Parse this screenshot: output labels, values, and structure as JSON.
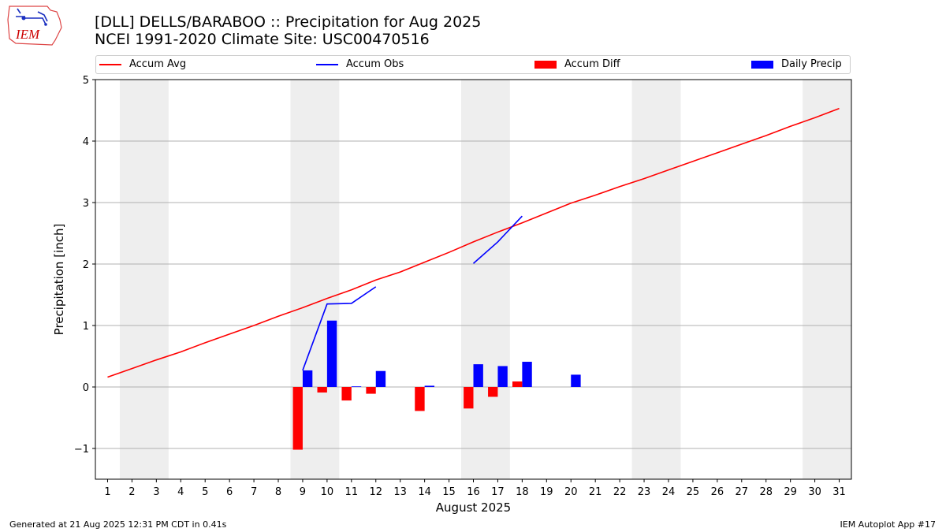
{
  "logo": {
    "text": "IEM",
    "icon": "iem-iowa-logo-icon",
    "color": "#cc0000"
  },
  "title_line1": "[DLL] DELLS/BARABOO :: Precipitation for Aug 2025",
  "title_line2": "NCEI 1991-2020 Climate Site: USC00470516",
  "footer_left": "Generated at 21 Aug 2025 12:31 PM CDT in 0.41s",
  "footer_right": "IEM Autoplot App #17",
  "legend": [
    {
      "label": "Accum Avg",
      "kind": "line",
      "color": "#ff0000"
    },
    {
      "label": "Accum Obs",
      "kind": "line",
      "color": "#0000ff"
    },
    {
      "label": "Accum Diff",
      "kind": "box",
      "color": "#ff0000"
    },
    {
      "label": "Daily Precip",
      "kind": "box",
      "color": "#0000ff"
    }
  ],
  "chart_data": {
    "type": "bar",
    "xlabel": "August 2025",
    "ylabel": "Precipitation [inch]",
    "xlim": [
      0.5,
      31.5
    ],
    "ylim": [
      -1.5,
      5.0
    ],
    "xticks": [
      1,
      2,
      3,
      4,
      5,
      6,
      7,
      8,
      9,
      10,
      11,
      12,
      13,
      14,
      15,
      16,
      17,
      18,
      19,
      20,
      21,
      22,
      23,
      24,
      25,
      26,
      27,
      28,
      29,
      30,
      31
    ],
    "yticks": [
      -1,
      0,
      1,
      2,
      3,
      4,
      5
    ],
    "ytick_labels": [
      "−1",
      "0",
      "1",
      "2",
      "3",
      "4",
      "5"
    ],
    "grid": "y",
    "weekend_shading": [
      [
        1.5,
        3.5
      ],
      [
        8.5,
        10.5
      ],
      [
        15.5,
        17.5
      ],
      [
        22.5,
        24.5
      ],
      [
        29.5,
        31.5
      ]
    ],
    "shading_color": "#eeeeee",
    "accum_avg": {
      "name": "Accum Avg",
      "color": "#ff0000",
      "x": [
        1,
        2,
        3,
        4,
        5,
        6,
        7,
        8,
        9,
        10,
        11,
        12,
        13,
        14,
        15,
        16,
        17,
        18,
        19,
        20,
        21,
        22,
        23,
        24,
        25,
        26,
        27,
        28,
        29,
        30,
        31
      ],
      "y": [
        0.16,
        0.3,
        0.44,
        0.57,
        0.72,
        0.86,
        1.0,
        1.15,
        1.29,
        1.44,
        1.58,
        1.74,
        1.87,
        2.03,
        2.19,
        2.36,
        2.52,
        2.67,
        2.83,
        2.99,
        3.12,
        3.26,
        3.39,
        3.53,
        3.67,
        3.81,
        3.95,
        4.09,
        4.24,
        4.38,
        4.53
      ]
    },
    "accum_obs": {
      "name": "Accum Obs",
      "color": "#0000ff",
      "segments": [
        {
          "x": [
            9,
            10,
            11,
            12
          ],
          "y": [
            0.27,
            1.35,
            1.36,
            1.63
          ]
        },
        {
          "x": [
            16,
            17,
            18
          ],
          "y": [
            2.01,
            2.36,
            2.78
          ]
        }
      ]
    },
    "accum_diff": {
      "name": "Accum Diff",
      "color": "#ff0000",
      "x": [
        9,
        10,
        11,
        12,
        14,
        16,
        17,
        18
      ],
      "values": [
        -1.02,
        -0.09,
        -0.22,
        -0.11,
        -0.39,
        -0.35,
        -0.16,
        0.09
      ]
    },
    "daily_precip": {
      "name": "Daily Precip",
      "color": "#0000ff",
      "x": [
        9,
        10,
        11,
        12,
        14,
        16,
        17,
        18,
        20
      ],
      "values": [
        0.27,
        1.08,
        0.01,
        0.26,
        0.02,
        0.37,
        0.34,
        0.41,
        0.2
      ]
    }
  }
}
